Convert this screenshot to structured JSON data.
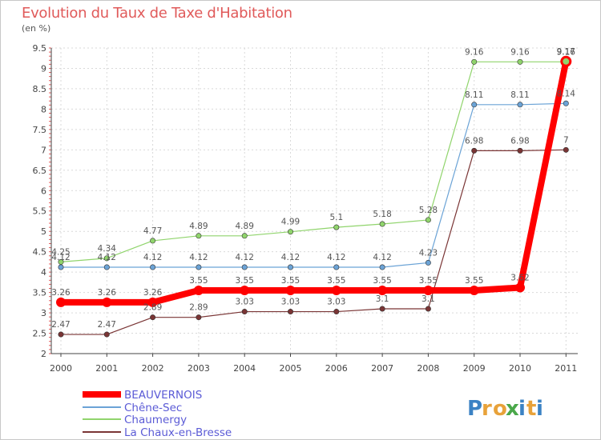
{
  "chart_data": {
    "type": "line",
    "title": "Evolution du Taux de Taxe d'Habitation",
    "subtitle": "(en %)",
    "categories": [
      "2000",
      "2001",
      "2002",
      "2003",
      "2004",
      "2005",
      "2006",
      "2007",
      "2008",
      "2009",
      "2010",
      "2011"
    ],
    "ylim": [
      2,
      9.5
    ],
    "yticks": [
      "2",
      "2.5",
      "3",
      "3.5",
      "4",
      "4.5",
      "5",
      "5.5",
      "6",
      "6.5",
      "7",
      "7.5",
      "8",
      "8.5",
      "9",
      "9.5"
    ],
    "grid": true,
    "legend_position": "bottom-left",
    "series": [
      {
        "name": "BEAUVERNOIS",
        "color": "#ff0000",
        "values": [
          3.26,
          3.26,
          3.26,
          3.55,
          3.55,
          3.55,
          3.55,
          3.55,
          3.55,
          3.55,
          3.62,
          9.17
        ],
        "labels": [
          "3.26",
          "3.26",
          "3.26",
          "3.55",
          "3.55",
          "3.55",
          "3.55",
          "3.55",
          "3.55",
          "3.55",
          "3.62",
          "9.17"
        ]
      },
      {
        "name": "Chêne-Sec",
        "color": "#6ba3d6",
        "values": [
          4.12,
          4.12,
          4.12,
          4.12,
          4.12,
          4.12,
          4.12,
          4.12,
          4.23,
          8.11,
          8.11,
          8.14
        ],
        "labels": [
          "4.12",
          "4.12",
          "4.12",
          "4.12",
          "4.12",
          "4.12",
          "4.12",
          "4.12",
          "4.23",
          "8.11",
          "8.11",
          "8.14"
        ]
      },
      {
        "name": "Chaumergy",
        "color": "#90d46c",
        "values": [
          4.25,
          4.34,
          4.77,
          4.89,
          4.89,
          4.99,
          5.1,
          5.18,
          5.28,
          9.16,
          9.16,
          9.16
        ],
        "labels": [
          "4.25",
          "4.34",
          "4.77",
          "4.89",
          "4.89",
          "4.99",
          "5.1",
          "5.18",
          "5.28",
          "9.16",
          "9.16",
          "9.16"
        ]
      },
      {
        "name": "La Chaux-en-Bresse",
        "color": "#7a3535",
        "values": [
          2.47,
          2.47,
          2.89,
          2.89,
          3.03,
          3.03,
          3.03,
          3.1,
          3.1,
          6.98,
          6.98,
          7
        ],
        "labels": [
          "2.47",
          "2.47",
          "2.89",
          "2.89",
          "3.03",
          "3.03",
          "3.03",
          "3.1",
          "3.1",
          "6.98",
          "6.98",
          "7"
        ]
      }
    ]
  },
  "watermark": "Proxiti"
}
